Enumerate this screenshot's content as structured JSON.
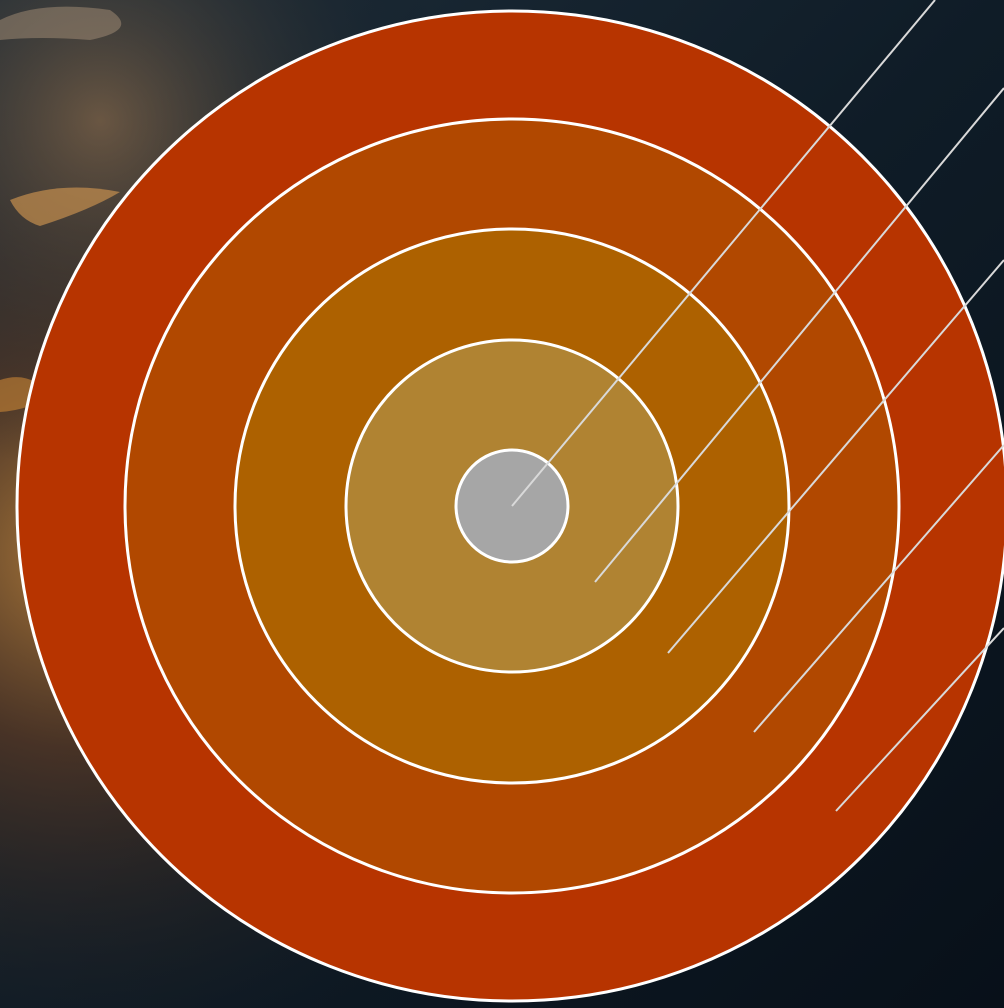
{
  "diagram": {
    "type": "concentric-rings",
    "background": {
      "description_colors": [
        "#0b1722",
        "#1c2a36",
        "#5a3a22",
        "#c9853a"
      ]
    },
    "rings": [
      {
        "id": "ring-outer",
        "color": "#b73400"
      },
      {
        "id": "ring-4",
        "color": "#b14800"
      },
      {
        "id": "ring-3",
        "color": "#ad6100"
      },
      {
        "id": "ring-2",
        "color": "#b08332"
      },
      {
        "id": "ring-center",
        "color": "#a6a6a6"
      }
    ],
    "outline_color": "#ffffff",
    "leader_line_color": "#d9d9d9",
    "leader_lines_count": 5
  }
}
